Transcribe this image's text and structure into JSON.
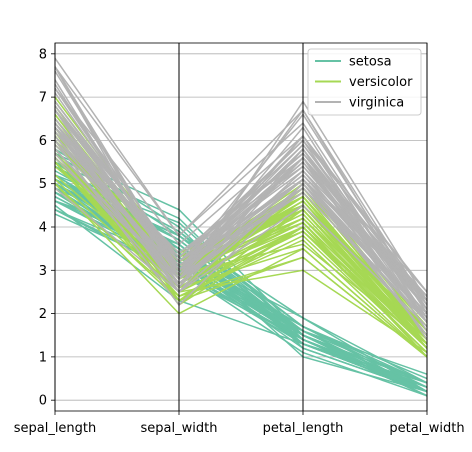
{
  "chart_data": {
    "type": "line",
    "subtype": "parallel_coordinates",
    "categories": [
      "sepal_length",
      "sepal_width",
      "petal_length",
      "petal_width"
    ],
    "ylim": [
      -0.25,
      8.25
    ],
    "yticks": [
      0,
      1,
      2,
      3,
      4,
      5,
      6,
      7,
      8
    ],
    "grid": true,
    "legend_position": "top-right",
    "colors": {
      "setosa": "#66c2a5",
      "versicolor": "#a6d854",
      "virginica": "#b3b3b3"
    },
    "series": [
      {
        "name": "setosa",
        "rows": [
          [
            5.1,
            3.5,
            1.4,
            0.2
          ],
          [
            4.9,
            3.0,
            1.4,
            0.2
          ],
          [
            4.7,
            3.2,
            1.3,
            0.2
          ],
          [
            4.6,
            3.1,
            1.5,
            0.2
          ],
          [
            5.0,
            3.6,
            1.4,
            0.2
          ],
          [
            5.4,
            3.9,
            1.7,
            0.4
          ],
          [
            4.6,
            3.4,
            1.4,
            0.3
          ],
          [
            5.0,
            3.4,
            1.5,
            0.2
          ],
          [
            4.4,
            2.9,
            1.4,
            0.2
          ],
          [
            4.9,
            3.1,
            1.5,
            0.1
          ],
          [
            5.4,
            3.7,
            1.5,
            0.2
          ],
          [
            4.8,
            3.4,
            1.6,
            0.2
          ],
          [
            4.8,
            3.0,
            1.4,
            0.1
          ],
          [
            4.3,
            3.0,
            1.1,
            0.1
          ],
          [
            5.8,
            4.0,
            1.2,
            0.2
          ],
          [
            5.7,
            4.4,
            1.5,
            0.4
          ],
          [
            5.4,
            3.9,
            1.3,
            0.4
          ],
          [
            5.1,
            3.5,
            1.4,
            0.3
          ],
          [
            5.7,
            3.8,
            1.7,
            0.3
          ],
          [
            5.1,
            3.8,
            1.5,
            0.3
          ],
          [
            5.4,
            3.4,
            1.7,
            0.2
          ],
          [
            5.1,
            3.7,
            1.5,
            0.4
          ],
          [
            4.6,
            3.6,
            1.0,
            0.2
          ],
          [
            5.1,
            3.3,
            1.7,
            0.5
          ],
          [
            4.8,
            3.4,
            1.9,
            0.2
          ],
          [
            5.0,
            3.0,
            1.6,
            0.2
          ],
          [
            5.0,
            3.4,
            1.6,
            0.4
          ],
          [
            5.2,
            3.5,
            1.5,
            0.2
          ],
          [
            5.2,
            3.4,
            1.4,
            0.2
          ],
          [
            4.7,
            3.2,
            1.6,
            0.2
          ],
          [
            4.8,
            3.1,
            1.6,
            0.2
          ],
          [
            5.4,
            3.4,
            1.5,
            0.4
          ],
          [
            5.2,
            4.1,
            1.5,
            0.1
          ],
          [
            5.5,
            4.2,
            1.4,
            0.2
          ],
          [
            4.9,
            3.1,
            1.5,
            0.2
          ],
          [
            5.0,
            3.2,
            1.2,
            0.2
          ],
          [
            5.5,
            3.5,
            1.3,
            0.2
          ],
          [
            4.9,
            3.6,
            1.4,
            0.1
          ],
          [
            4.4,
            3.0,
            1.3,
            0.2
          ],
          [
            5.1,
            3.4,
            1.5,
            0.2
          ],
          [
            5.0,
            3.5,
            1.3,
            0.3
          ],
          [
            4.5,
            2.3,
            1.3,
            0.3
          ],
          [
            4.4,
            3.2,
            1.3,
            0.2
          ],
          [
            5.0,
            3.5,
            1.6,
            0.6
          ],
          [
            5.1,
            3.8,
            1.9,
            0.4
          ],
          [
            4.8,
            3.0,
            1.4,
            0.3
          ],
          [
            5.1,
            3.8,
            1.6,
            0.2
          ],
          [
            4.6,
            3.2,
            1.4,
            0.2
          ],
          [
            5.3,
            3.7,
            1.5,
            0.2
          ],
          [
            5.0,
            3.3,
            1.4,
            0.2
          ]
        ]
      },
      {
        "name": "versicolor",
        "rows": [
          [
            7.0,
            3.2,
            4.7,
            1.4
          ],
          [
            6.4,
            3.2,
            4.5,
            1.5
          ],
          [
            6.9,
            3.1,
            4.9,
            1.5
          ],
          [
            5.5,
            2.3,
            4.0,
            1.3
          ],
          [
            6.5,
            2.8,
            4.6,
            1.5
          ],
          [
            5.7,
            2.8,
            4.5,
            1.3
          ],
          [
            6.3,
            3.3,
            4.7,
            1.6
          ],
          [
            4.9,
            2.4,
            3.3,
            1.0
          ],
          [
            6.6,
            2.9,
            4.6,
            1.3
          ],
          [
            5.2,
            2.7,
            3.9,
            1.4
          ],
          [
            5.0,
            2.0,
            3.5,
            1.0
          ],
          [
            5.9,
            3.0,
            4.2,
            1.5
          ],
          [
            6.0,
            2.2,
            4.0,
            1.0
          ],
          [
            6.1,
            2.9,
            4.7,
            1.4
          ],
          [
            5.6,
            2.9,
            3.6,
            1.3
          ],
          [
            6.7,
            3.1,
            4.4,
            1.4
          ],
          [
            5.6,
            3.0,
            4.5,
            1.5
          ],
          [
            5.8,
            2.7,
            4.1,
            1.0
          ],
          [
            6.2,
            2.2,
            4.5,
            1.5
          ],
          [
            5.6,
            2.5,
            3.9,
            1.1
          ],
          [
            5.9,
            3.2,
            4.8,
            1.8
          ],
          [
            6.1,
            2.8,
            4.0,
            1.3
          ],
          [
            6.3,
            2.5,
            4.9,
            1.5
          ],
          [
            6.1,
            2.8,
            4.7,
            1.2
          ],
          [
            6.4,
            2.9,
            4.3,
            1.3
          ],
          [
            6.6,
            3.0,
            4.4,
            1.4
          ],
          [
            6.8,
            2.8,
            4.8,
            1.4
          ],
          [
            6.7,
            3.0,
            5.0,
            1.7
          ],
          [
            6.0,
            2.9,
            4.5,
            1.5
          ],
          [
            5.7,
            2.6,
            3.5,
            1.0
          ],
          [
            5.5,
            2.4,
            3.8,
            1.1
          ],
          [
            5.5,
            2.4,
            3.7,
            1.0
          ],
          [
            5.8,
            2.7,
            3.9,
            1.2
          ],
          [
            6.0,
            2.7,
            5.1,
            1.6
          ],
          [
            5.4,
            3.0,
            4.5,
            1.5
          ],
          [
            6.0,
            3.4,
            4.5,
            1.6
          ],
          [
            6.7,
            3.1,
            4.7,
            1.5
          ],
          [
            6.3,
            2.3,
            4.4,
            1.3
          ],
          [
            5.6,
            3.0,
            4.1,
            1.3
          ],
          [
            5.5,
            2.5,
            4.0,
            1.3
          ],
          [
            5.5,
            2.6,
            4.4,
            1.2
          ],
          [
            6.1,
            3.0,
            4.6,
            1.4
          ],
          [
            5.8,
            2.6,
            4.0,
            1.2
          ],
          [
            5.0,
            2.3,
            3.3,
            1.0
          ],
          [
            5.6,
            2.7,
            4.2,
            1.3
          ],
          [
            5.7,
            3.0,
            4.2,
            1.2
          ],
          [
            5.7,
            2.9,
            4.2,
            1.3
          ],
          [
            6.2,
            2.9,
            4.3,
            1.3
          ],
          [
            5.1,
            2.5,
            3.0,
            1.1
          ],
          [
            5.7,
            2.8,
            4.1,
            1.3
          ]
        ]
      },
      {
        "name": "virginica",
        "rows": [
          [
            6.3,
            3.3,
            6.0,
            2.5
          ],
          [
            5.8,
            2.7,
            5.1,
            1.9
          ],
          [
            7.1,
            3.0,
            5.9,
            2.1
          ],
          [
            6.3,
            2.9,
            5.6,
            1.8
          ],
          [
            6.5,
            3.0,
            5.8,
            2.2
          ],
          [
            7.6,
            3.0,
            6.6,
            2.1
          ],
          [
            4.9,
            2.5,
            4.5,
            1.7
          ],
          [
            7.3,
            2.9,
            6.3,
            1.8
          ],
          [
            6.7,
            2.5,
            5.8,
            1.8
          ],
          [
            7.2,
            3.6,
            6.1,
            2.5
          ],
          [
            6.5,
            3.2,
            5.1,
            2.0
          ],
          [
            6.4,
            2.7,
            5.3,
            1.9
          ],
          [
            6.8,
            3.0,
            5.5,
            2.1
          ],
          [
            5.7,
            2.5,
            5.0,
            2.0
          ],
          [
            5.8,
            2.8,
            5.1,
            2.4
          ],
          [
            6.4,
            3.2,
            5.3,
            2.3
          ],
          [
            6.5,
            3.0,
            5.5,
            1.8
          ],
          [
            7.7,
            3.8,
            6.7,
            2.2
          ],
          [
            7.7,
            2.6,
            6.9,
            2.3
          ],
          [
            6.0,
            2.2,
            5.0,
            1.5
          ],
          [
            6.9,
            3.2,
            5.7,
            2.3
          ],
          [
            5.6,
            2.8,
            4.9,
            2.0
          ],
          [
            7.7,
            2.8,
            6.7,
            2.0
          ],
          [
            6.3,
            2.7,
            4.9,
            1.8
          ],
          [
            6.7,
            3.3,
            5.7,
            2.1
          ],
          [
            7.2,
            3.2,
            6.0,
            1.8
          ],
          [
            6.2,
            2.8,
            4.8,
            1.8
          ],
          [
            6.1,
            3.0,
            4.9,
            1.8
          ],
          [
            6.4,
            2.8,
            5.6,
            2.1
          ],
          [
            7.2,
            3.0,
            5.8,
            1.6
          ],
          [
            7.4,
            2.8,
            6.1,
            1.9
          ],
          [
            7.9,
            3.8,
            6.4,
            2.0
          ],
          [
            6.4,
            2.8,
            5.6,
            2.2
          ],
          [
            6.3,
            2.8,
            5.1,
            1.5
          ],
          [
            6.1,
            2.6,
            5.6,
            1.4
          ],
          [
            7.7,
            3.0,
            6.1,
            2.3
          ],
          [
            6.3,
            3.4,
            5.6,
            2.4
          ],
          [
            6.4,
            3.1,
            5.5,
            1.8
          ],
          [
            6.0,
            3.0,
            4.8,
            1.8
          ],
          [
            6.9,
            3.1,
            5.4,
            2.1
          ],
          [
            6.7,
            3.1,
            5.6,
            2.4
          ],
          [
            6.9,
            3.1,
            5.1,
            2.3
          ],
          [
            5.8,
            2.7,
            5.1,
            1.9
          ],
          [
            6.8,
            3.2,
            5.9,
            2.3
          ],
          [
            6.7,
            3.3,
            5.7,
            2.5
          ],
          [
            6.7,
            3.0,
            5.2,
            2.3
          ],
          [
            6.3,
            2.5,
            5.0,
            1.9
          ],
          [
            6.5,
            3.0,
            5.2,
            2.0
          ],
          [
            6.2,
            3.4,
            5.4,
            2.3
          ],
          [
            5.9,
            3.0,
            5.1,
            1.8
          ]
        ]
      }
    ]
  }
}
